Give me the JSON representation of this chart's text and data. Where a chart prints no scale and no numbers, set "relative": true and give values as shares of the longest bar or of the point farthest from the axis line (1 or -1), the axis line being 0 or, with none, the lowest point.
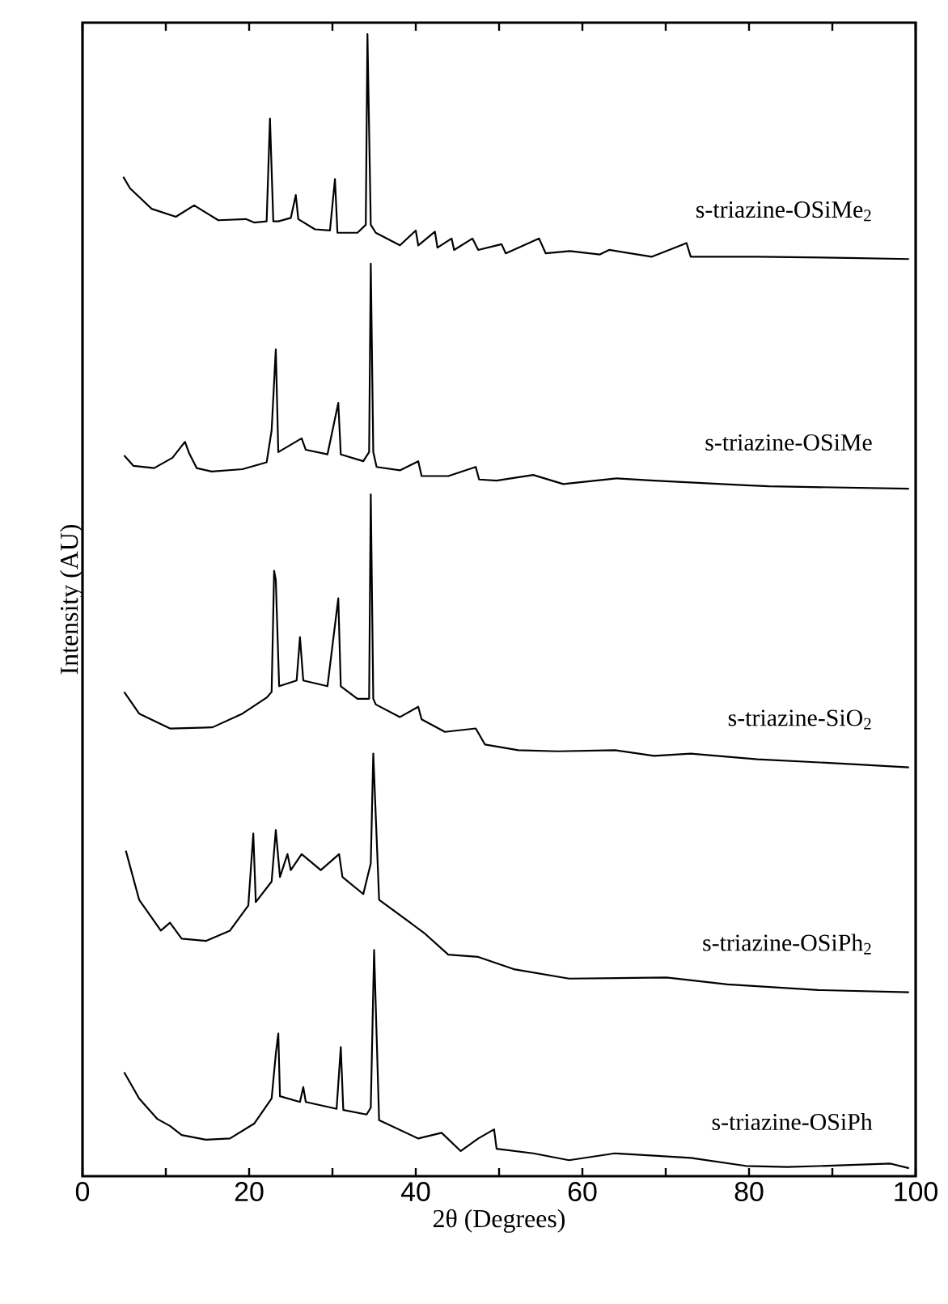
{
  "chart_data": {
    "type": "line",
    "relative": true,
    "xlabel": "2θ (Degrees)",
    "ylabel": "Intensity (AU)",
    "xlim": [
      0,
      100
    ],
    "xticks": [
      0,
      {
        "value": 10,
        "label": null
      },
      20,
      {
        "value": 30,
        "label": null
      },
      40,
      {
        "value": 50,
        "label": null
      },
      60,
      {
        "value": 70,
        "label": null
      },
      80,
      {
        "value": 90,
        "label": null
      },
      100
    ],
    "tick_labels": "x",
    "series": [
      {
        "name": "s-triazine-OSiMe$_{2}$",
        "color": "#000000",
        "x": [
          4.9,
          5.7,
          8.3,
          11.2,
          13.4,
          16.3,
          19.6,
          20.6,
          22.1,
          22.5,
          22.9,
          23.5,
          25.0,
          25.6,
          25.9,
          27.9,
          29.7,
          30.3,
          30.6,
          33.0,
          34.0,
          34.2,
          34.6,
          35.2,
          38.1,
          40.0,
          40.3,
          42.3,
          42.6,
          44.3,
          44.6,
          46.8,
          47.5,
          50.3,
          50.8,
          54.8,
          55.6,
          58.5,
          62.1,
          63.2,
          68.3,
          72.5,
          73.0,
          81.0,
          91.9,
          99.2
        ],
        "values": [
          0.875,
          0.865,
          0.847,
          0.84,
          0.85,
          0.837,
          0.838,
          0.835,
          0.836,
          0.926,
          0.836,
          0.836,
          0.839,
          0.859,
          0.838,
          0.829,
          0.828,
          0.873,
          0.826,
          0.826,
          0.833,
          1.0,
          0.833,
          0.826,
          0.815,
          0.828,
          0.815,
          0.827,
          0.813,
          0.821,
          0.811,
          0.821,
          0.811,
          0.816,
          0.808,
          0.821,
          0.808,
          0.81,
          0.807,
          0.811,
          0.805,
          0.817,
          0.805,
          0.805,
          0.804,
          0.803
        ]
      },
      {
        "name": "s-triazine-OSiMe",
        "color": "#000000",
        "x": [
          5.0,
          6.1,
          8.6,
          10.8,
          12.3,
          12.8,
          13.7,
          15.5,
          19.2,
          22.1,
          22.7,
          23.2,
          23.5,
          26.3,
          26.8,
          29.4,
          30.7,
          31.0,
          33.7,
          34.4,
          34.6,
          34.9,
          35.3,
          38.1,
          40.3,
          40.7,
          43.9,
          47.2,
          47.6,
          49.7,
          54.1,
          57.7,
          64.1,
          68.6,
          79.6,
          82.4,
          99.2
        ],
        "values": [
          0.631,
          0.622,
          0.62,
          0.629,
          0.643,
          0.633,
          0.62,
          0.617,
          0.619,
          0.625,
          0.653,
          0.724,
          0.634,
          0.646,
          0.636,
          0.632,
          0.677,
          0.632,
          0.626,
          0.634,
          0.799,
          0.634,
          0.621,
          0.618,
          0.626,
          0.613,
          0.613,
          0.621,
          0.61,
          0.609,
          0.614,
          0.606,
          0.611,
          0.609,
          0.605,
          0.604,
          0.602
        ]
      },
      {
        "name": "s-triazine-SiO$_{2}$",
        "color": "#000000",
        "x": [
          5.0,
          6.8,
          10.5,
          15.6,
          19.2,
          22.1,
          22.7,
          23.0,
          23.2,
          23.6,
          25.7,
          26.1,
          26.5,
          29.4,
          30.7,
          31.0,
          33.0,
          34.4,
          34.6,
          34.9,
          35.2,
          38.1,
          40.3,
          40.7,
          43.5,
          47.2,
          48.3,
          52.3,
          57.0,
          63.9,
          68.6,
          73.0,
          81.0,
          91.9,
          99.2
        ],
        "values": [
          0.424,
          0.405,
          0.392,
          0.393,
          0.405,
          0.419,
          0.424,
          0.53,
          0.522,
          0.429,
          0.434,
          0.472,
          0.434,
          0.429,
          0.506,
          0.429,
          0.418,
          0.418,
          0.597,
          0.418,
          0.413,
          0.402,
          0.411,
          0.4,
          0.389,
          0.392,
          0.378,
          0.373,
          0.372,
          0.373,
          0.368,
          0.37,
          0.365,
          0.361,
          0.358
        ]
      },
      {
        "name": "s-triazine-OSiPh$_{2}$",
        "color": "#000000",
        "x": [
          5.2,
          6.8,
          9.4,
          10.5,
          11.9,
          14.8,
          17.7,
          19.9,
          20.5,
          20.8,
          22.7,
          23.2,
          23.7,
          24.6,
          25.0,
          26.3,
          28.6,
          30.8,
          31.2,
          33.7,
          34.6,
          34.9,
          35.6,
          41.0,
          43.9,
          47.5,
          51.9,
          58.4,
          70.1,
          77.4,
          88.3,
          99.2
        ],
        "values": [
          0.285,
          0.242,
          0.215,
          0.222,
          0.208,
          0.206,
          0.215,
          0.237,
          0.3,
          0.24,
          0.258,
          0.303,
          0.262,
          0.282,
          0.268,
          0.282,
          0.268,
          0.282,
          0.262,
          0.247,
          0.274,
          0.37,
          0.242,
          0.213,
          0.194,
          0.192,
          0.181,
          0.173,
          0.174,
          0.168,
          0.163,
          0.161
        ]
      },
      {
        "name": "s-triazine-OSiPh",
        "color": "#000000",
        "x": [
          5.0,
          6.8,
          9.0,
          10.5,
          11.9,
          14.8,
          17.7,
          20.6,
          22.7,
          23.2,
          23.5,
          23.7,
          26.1,
          26.5,
          26.8,
          30.5,
          31.0,
          31.3,
          34.1,
          34.6,
          35.0,
          35.6,
          40.3,
          43.1,
          45.4,
          47.5,
          49.4,
          49.7,
          54.1,
          58.4,
          63.9,
          68.6,
          73.0,
          79.6,
          84.6,
          97.0,
          99.2
        ],
        "values": [
          0.091,
          0.068,
          0.05,
          0.044,
          0.036,
          0.032,
          0.033,
          0.046,
          0.068,
          0.107,
          0.125,
          0.07,
          0.065,
          0.078,
          0.065,
          0.059,
          0.113,
          0.058,
          0.054,
          0.06,
          0.198,
          0.049,
          0.033,
          0.038,
          0.022,
          0.033,
          0.041,
          0.024,
          0.02,
          0.014,
          0.02,
          0.018,
          0.016,
          0.009,
          0.008,
          0.011,
          0.007
        ]
      }
    ]
  }
}
